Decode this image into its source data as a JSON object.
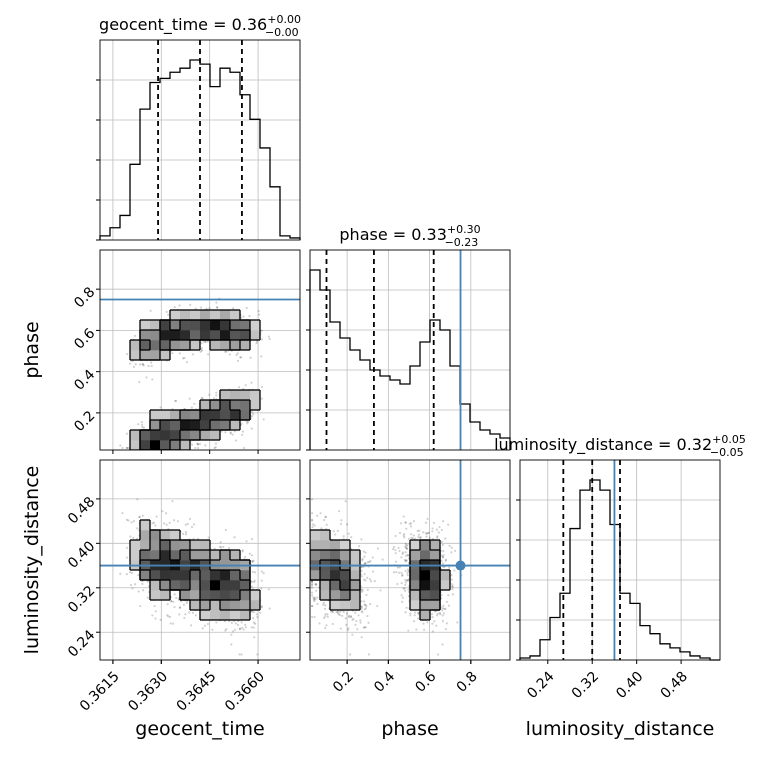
{
  "chart_data": {
    "type": "corner",
    "params": [
      "geocent_time",
      "phase",
      "luminosity_distance"
    ],
    "axis_labels": [
      "geocent_time",
      "phase",
      "luminosity_distance"
    ],
    "titles": [
      {
        "param": "geocent_time",
        "prefix": "geocent_time = ",
        "value": "0.36",
        "plus": "+0.00",
        "minus": "−0.00"
      },
      {
        "param": "phase",
        "prefix": "phase = ",
        "value": "0.33",
        "plus": "+0.30",
        "minus": "−0.23"
      },
      {
        "param": "luminosity_distance",
        "prefix": "luminosity_distance = ",
        "value": "0.32",
        "plus": "+0.05",
        "minus": "−0.05"
      }
    ],
    "ranges": {
      "geocent_time": [
        0.3611,
        0.3673
      ],
      "phase": [
        0.02,
        0.99
      ],
      "luminosity_distance": [
        0.19,
        0.55
      ]
    },
    "ticks": {
      "geocent_time": {
        "values": [
          0.3615,
          0.363,
          0.3645,
          0.366
        ],
        "labels": [
          "0.3615",
          "0.3630",
          "0.3645",
          "0.3660"
        ]
      },
      "phase": {
        "values": [
          0.2,
          0.4,
          0.6,
          0.8
        ],
        "labels": [
          "0.2",
          "0.4",
          "0.6",
          "0.8"
        ]
      },
      "luminosity_distance": {
        "values": [
          0.24,
          0.32,
          0.4,
          0.48
        ],
        "labels": [
          "0.24",
          "0.32",
          "0.40",
          "0.48"
        ]
      }
    },
    "truths": {
      "phase": 0.75,
      "luminosity_distance": 0.36
    },
    "quantiles": {
      "geocent_time": [
        0.3629,
        0.3642,
        0.3655
      ],
      "phase": [
        0.1,
        0.33,
        0.62
      ],
      "luminosity_distance": [
        0.268,
        0.32,
        0.37
      ]
    },
    "histograms": {
      "geocent_time": [
        2,
        6,
        12,
        37,
        64,
        77,
        79,
        82,
        84,
        88,
        86,
        75,
        84,
        82,
        71,
        59,
        45,
        26,
        2,
        1
      ],
      "phase": [
        90,
        80,
        64,
        56,
        50,
        45,
        40,
        37,
        35,
        33,
        42,
        54,
        65,
        60,
        42,
        23,
        14,
        10,
        8,
        6
      ],
      "luminosity_distance": [
        1,
        2,
        10,
        21,
        33,
        65,
        84,
        89,
        84,
        67,
        33,
        28,
        17,
        13,
        8,
        6,
        4,
        2,
        1,
        0
      ]
    },
    "grid": true
  }
}
